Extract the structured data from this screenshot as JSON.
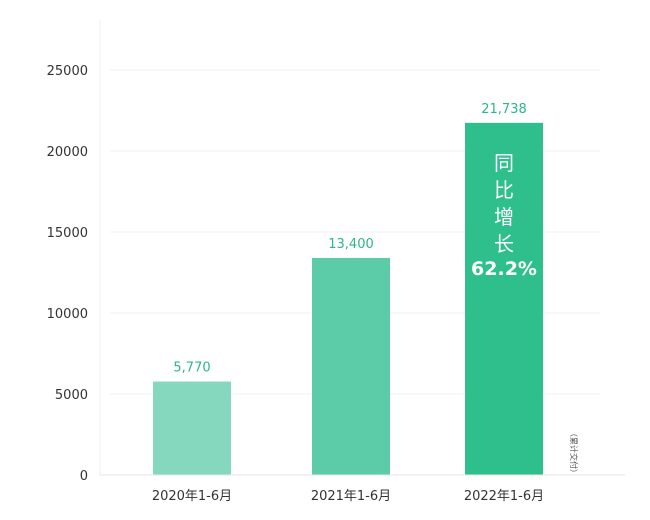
{
  "chart_data": {
    "type": "bar",
    "categories": [
      "2020年1-6月",
      "2021年1-6月",
      "2022年1-6月"
    ],
    "values": [
      5770,
      13400,
      21738
    ],
    "data_labels": [
      "5,770",
      "13,400",
      "21,738"
    ],
    "ylim": [
      0,
      25000
    ],
    "yticks": [
      "0",
      "5000",
      "10000",
      "15000",
      "20000",
      "25000"
    ],
    "grid": true,
    "bar_colors": [
      "#85d8bd",
      "#5ccca8",
      "#2fbf8d"
    ],
    "label_color": "#2fb589",
    "annotation": {
      "text_chars": [
        "同",
        "比",
        "增",
        "长"
      ],
      "value": "62.2%",
      "bar_index": 2
    },
    "side_note": "（累计交付）"
  }
}
